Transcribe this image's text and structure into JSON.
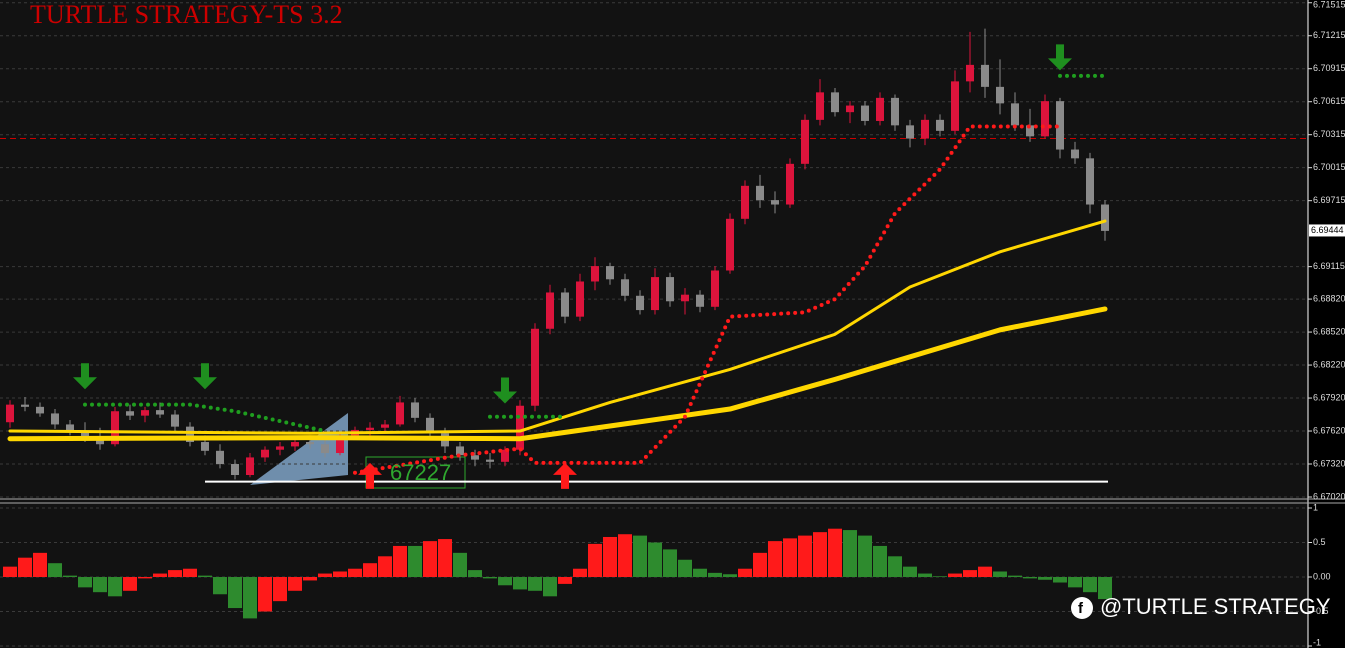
{
  "chart_data": [
    {
      "type": "candlestick",
      "title": "TURTLE STRATEGY-TS 3.2",
      "ylim": [
        6.6702,
        6.7154
      ],
      "yticks": [
        6.71515,
        6.71215,
        6.70915,
        6.70615,
        6.70315,
        6.70015,
        6.69715,
        6.69115,
        {
          "value": 6.6882,
          "label": "6.68820"
        },
        {
          "value": 6.6852,
          "label": "6.68520"
        },
        {
          "value": 6.6822,
          "label": "6.68220"
        },
        {
          "value": 6.6792,
          "label": "6.67920"
        },
        {
          "value": 6.6762,
          "label": "6.67620"
        },
        {
          "value": 6.6732,
          "label": "6.67320"
        },
        {
          "value": 6.6702,
          "label": "6.67020"
        }
      ],
      "grid": true,
      "current_price": 6.69444,
      "up_color": "#dc143c",
      "down_color": "#8a8a8a",
      "candles": [
        [
          6.677,
          6.679,
          6.6765,
          6.6786
        ],
        [
          6.6786,
          6.6793,
          6.678,
          6.6784
        ],
        [
          6.6784,
          6.6788,
          6.6775,
          6.6778
        ],
        [
          6.6778,
          6.6782,
          6.6764,
          6.6768
        ],
        [
          6.6768,
          6.6772,
          6.6758,
          6.6762
        ],
        [
          6.6762,
          6.677,
          6.6752,
          6.6757
        ],
        [
          6.6757,
          6.6765,
          6.6745,
          6.675
        ],
        [
          6.675,
          6.6784,
          6.6748,
          6.678
        ],
        [
          6.678,
          6.6786,
          6.6772,
          6.6776
        ],
        [
          6.6776,
          6.6784,
          6.677,
          6.6781
        ],
        [
          6.6781,
          6.6788,
          6.6774,
          6.6777
        ],
        [
          6.6777,
          6.6781,
          6.6762,
          6.6766
        ],
        [
          6.6766,
          6.677,
          6.6748,
          6.6752
        ],
        [
          6.6752,
          6.6758,
          6.674,
          6.6744
        ],
        [
          6.6744,
          6.675,
          6.6728,
          6.6732
        ],
        [
          6.6732,
          6.6736,
          6.6718,
          6.6722
        ],
        [
          6.6722,
          6.6742,
          6.672,
          6.6738
        ],
        [
          6.6738,
          6.6748,
          6.6734,
          6.6745
        ],
        [
          6.6745,
          6.6752,
          6.674,
          6.6748
        ],
        [
          6.6748,
          6.6756,
          6.6744,
          6.6752
        ],
        [
          6.6752,
          6.6758,
          6.6746,
          6.675
        ],
        [
          6.675,
          6.6755,
          6.6738,
          6.6742
        ],
        [
          6.6742,
          6.676,
          6.674,
          6.6758
        ],
        [
          6.6758,
          6.6766,
          6.6754,
          6.6763
        ],
        [
          6.6763,
          6.677,
          6.6758,
          6.6765
        ],
        [
          6.6765,
          6.6772,
          6.676,
          6.6768
        ],
        [
          6.6768,
          6.6794,
          6.6766,
          6.6788
        ],
        [
          6.6788,
          6.6792,
          6.677,
          6.6774
        ],
        [
          6.6774,
          6.6778,
          6.6755,
          6.676
        ],
        [
          6.676,
          6.6765,
          6.6742,
          6.6748
        ],
        [
          6.6748,
          6.6752,
          6.6735,
          6.674
        ],
        [
          6.674,
          6.6745,
          6.673,
          6.6736
        ],
        [
          6.6736,
          6.6742,
          6.6728,
          6.6734
        ],
        [
          6.6734,
          6.6748,
          6.673,
          6.6745
        ],
        [
          6.6745,
          6.679,
          6.674,
          6.6785
        ],
        [
          6.6785,
          6.686,
          6.678,
          6.6855
        ],
        [
          6.6855,
          6.6895,
          6.685,
          6.6888
        ],
        [
          6.6888,
          6.6892,
          6.686,
          6.6866
        ],
        [
          6.6866,
          6.6905,
          6.6862,
          6.6898
        ],
        [
          6.6898,
          6.692,
          6.689,
          6.6912
        ],
        [
          6.6912,
          6.6915,
          6.6895,
          6.69
        ],
        [
          6.69,
          6.6905,
          6.688,
          6.6885
        ],
        [
          6.6885,
          6.689,
          6.6868,
          6.6872
        ],
        [
          6.6872,
          6.691,
          6.6868,
          6.6902
        ],
        [
          6.6902,
          6.6906,
          6.6875,
          6.688
        ],
        [
          6.688,
          6.6892,
          6.6868,
          6.6886
        ],
        [
          6.6886,
          6.689,
          6.687,
          6.6875
        ],
        [
          6.6875,
          6.6912,
          6.6872,
          6.6908
        ],
        [
          6.6908,
          6.696,
          6.6905,
          6.6955
        ],
        [
          6.6955,
          6.699,
          6.695,
          6.6985
        ],
        [
          6.6985,
          6.6995,
          6.6965,
          6.6972
        ],
        [
          6.6972,
          6.698,
          6.696,
          6.6968
        ],
        [
          6.6968,
          6.701,
          6.6965,
          6.7005
        ],
        [
          6.7005,
          6.705,
          6.7,
          6.7045
        ],
        [
          6.7045,
          6.7082,
          6.704,
          6.707
        ],
        [
          6.707,
          6.7074,
          6.7048,
          6.7052
        ],
        [
          6.7052,
          6.7062,
          6.7042,
          6.7058
        ],
        [
          6.7058,
          6.7062,
          6.704,
          6.7044
        ],
        [
          6.7044,
          6.707,
          6.704,
          6.7065
        ],
        [
          6.7065,
          6.7068,
          6.7035,
          6.704
        ],
        [
          6.704,
          6.7045,
          6.702,
          6.7028
        ],
        [
          6.7028,
          6.705,
          6.7022,
          6.7045
        ],
        [
          6.7045,
          6.705,
          6.703,
          6.7035
        ],
        [
          6.7035,
          6.709,
          6.7032,
          6.708
        ],
        [
          6.708,
          6.7125,
          6.707,
          6.7095
        ],
        [
          6.7095,
          6.7128,
          6.7065,
          6.7075
        ],
        [
          6.7075,
          6.71,
          6.705,
          6.706
        ],
        [
          6.706,
          6.707,
          6.7035,
          6.704
        ],
        [
          6.704,
          6.7055,
          6.7025,
          6.703
        ],
        [
          6.703,
          6.7068,
          6.7028,
          6.7062
        ],
        [
          6.7062,
          6.7065,
          6.701,
          6.7018
        ],
        [
          6.7018,
          6.7025,
          6.7005,
          6.701
        ],
        [
          6.701,
          6.7015,
          6.696,
          6.6968
        ],
        [
          6.6968,
          6.6972,
          6.6935,
          6.6944
        ]
      ],
      "lines": [
        {
          "color": "#ffd700",
          "width": 5,
          "x": [
            0,
            20,
            34,
            48,
            55,
            66,
            73
          ],
          "values": [
            6.6755,
            6.6756,
            6.6755,
            6.6782,
            6.6809,
            6.6854,
            6.6873
          ]
        },
        {
          "color": "#ffd700",
          "width": 3,
          "x": [
            0,
            20,
            34,
            40,
            48,
            55,
            60,
            66,
            73
          ],
          "values": [
            6.6762,
            6.676,
            6.6762,
            6.6788,
            6.6818,
            6.685,
            6.6893,
            6.6925,
            6.6953
          ]
        },
        {
          "color": "#ff1a1a",
          "width": 4,
          "dash": "0 7",
          "x": [
            23,
            30,
            34,
            35,
            42,
            45,
            48,
            53,
            55,
            57,
            59,
            62,
            64,
            70
          ],
          "values": [
            6.6724,
            6.674,
            6.6746,
            6.6733,
            6.6733,
            6.6775,
            6.6866,
            6.687,
            6.6882,
            6.6912,
            6.696,
            6.7,
            6.7039,
            6.7039
          ]
        },
        {
          "color": "#1f9e1f",
          "width": 4,
          "dash": "0 7",
          "x": [
            5,
            12,
            15,
            21,
            22,
            32,
            37,
            38,
            70,
            73
          ],
          "values": [
            6.6786,
            6.6786,
            6.678,
            6.6762,
            null,
            6.6775,
            6.6775,
            null,
            6.7085,
            6.7085
          ]
        }
      ],
      "support_level": 6.6716,
      "resistance_level": 6.7028,
      "sell_arrows": {
        "color": "#1f8f1f",
        "x": [
          5,
          13,
          33,
          70
        ],
        "values": [
          6.68,
          6.68,
          6.6787,
          6.709
        ]
      },
      "buy_arrows": {
        "color": "#ff1a1a",
        "x": [
          24,
          37
        ],
        "values": [
          6.6733,
          6.6733
        ]
      },
      "annotation": "67227"
    },
    {
      "type": "bar",
      "ylim": [
        -1,
        1
      ],
      "yticks": [
        1,
        0.5,
        {
          "value": 0,
          "label": "0.00"
        },
        -0.5,
        -1
      ],
      "up_color": "#ff1a1a",
      "down_color": "#2e8b2e",
      "values": [
        0.15,
        0.28,
        0.35,
        0.2,
        0.02,
        -0.15,
        -0.22,
        -0.28,
        -0.2,
        -0.02,
        0.05,
        0.1,
        0.12,
        0.02,
        -0.25,
        -0.45,
        -0.6,
        -0.5,
        -0.35,
        -0.2,
        -0.05,
        0.05,
        0.08,
        0.12,
        0.2,
        0.3,
        0.45,
        0.45,
        0.52,
        0.55,
        0.35,
        0.1,
        -0.02,
        -0.12,
        -0.18,
        -0.2,
        -0.28,
        -0.1,
        0.12,
        0.48,
        0.58,
        0.62,
        0.6,
        0.5,
        0.4,
        0.25,
        0.12,
        0.06,
        0.04,
        0.12,
        0.35,
        0.52,
        0.56,
        0.6,
        0.65,
        0.7,
        0.68,
        0.6,
        0.45,
        0.3,
        0.15,
        0.05,
        0.01,
        0.05,
        0.1,
        0.15,
        0.08,
        0.02,
        -0.02,
        -0.04,
        -0.08,
        -0.15,
        -0.22,
        -0.32
      ],
      "watermark": "@TURTLE STRATEGY"
    }
  ]
}
